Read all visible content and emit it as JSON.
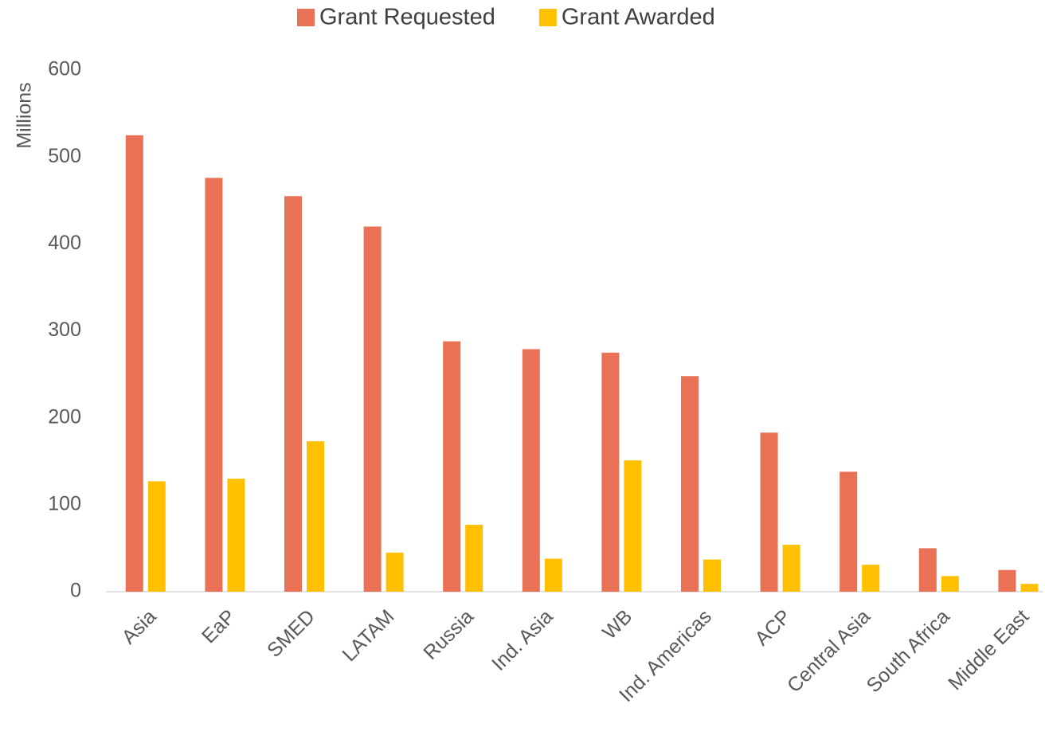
{
  "chart_data": {
    "type": "bar",
    "y_axis_label": "Millions",
    "categories": [
      "Asia",
      "EaP",
      "SMED",
      "LATAM",
      "Russia",
      "Ind. Asia",
      "WB",
      "Ind. Americas",
      "ACP",
      "Central Asia",
      "South Africa",
      "Middle East"
    ],
    "series": [
      {
        "name": "Grant Requested",
        "color": "#e97155",
        "values": [
          525,
          476,
          455,
          420,
          288,
          279,
          275,
          248,
          183,
          138,
          50,
          25
        ]
      },
      {
        "name": "Grant Awarded",
        "color": "#ffc000",
        "values": [
          127,
          130,
          173,
          45,
          77,
          38,
          151,
          37,
          54,
          31,
          18,
          9
        ]
      }
    ],
    "ylim": [
      0,
      600
    ],
    "yticks": [
      0,
      100,
      200,
      300,
      400,
      500,
      600
    ],
    "grid": false,
    "legend": "top"
  }
}
